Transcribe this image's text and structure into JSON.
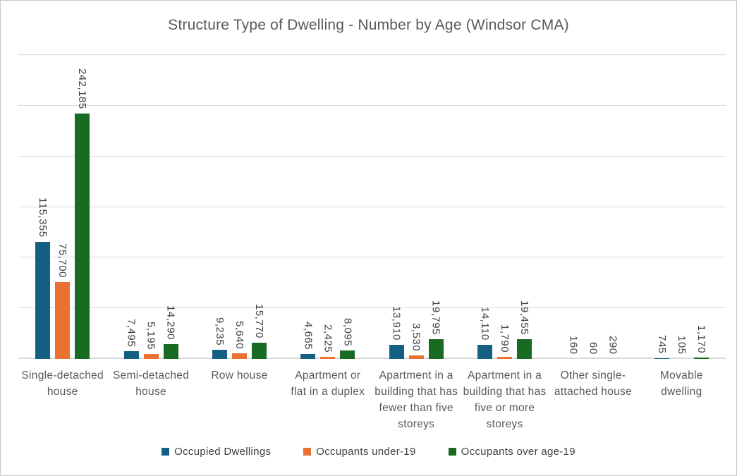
{
  "window": {
    "background": "#FFFFFF",
    "border_color": "#C9C9C9"
  },
  "chart_data": {
    "type": "bar",
    "title": "Structure Type of Dwelling - Number by Age (Windsor CMA)",
    "categories": [
      {
        "label": "Single-detached house",
        "lines": [
          "Single-detached",
          "house"
        ]
      },
      {
        "label": "Semi-detached house",
        "lines": [
          "Semi-detached",
          "house"
        ]
      },
      {
        "label": "Row house",
        "lines": [
          "Row house"
        ]
      },
      {
        "label": "Apartment or flat in a duplex",
        "lines": [
          "Apartment or",
          "flat in a duplex"
        ]
      },
      {
        "label": "Apartment in a building that has fewer than five storeys",
        "lines": [
          "Apartment in a",
          "building that has",
          "fewer than five",
          "storeys"
        ]
      },
      {
        "label": "Apartment in a building that has five or more storeys",
        "lines": [
          "Apartment in a",
          "building that has",
          "five or more",
          "storeys"
        ]
      },
      {
        "label": "Other single-attached house",
        "lines": [
          "Other single-",
          "attached house"
        ]
      },
      {
        "label": "Movable dwelling",
        "lines": [
          "Movable",
          "dwelling"
        ]
      }
    ],
    "series": [
      {
        "name": "Occupied Dwellings",
        "color": "#156082",
        "values": [
          115355,
          7495,
          9235,
          4665,
          13910,
          14110,
          160,
          745
        ]
      },
      {
        "name": "Occupants under-19",
        "color": "#E97132",
        "values": [
          75700,
          5195,
          5640,
          2425,
          3530,
          1790,
          60,
          105
        ]
      },
      {
        "name": "Occupants over age-19",
        "color": "#196B24",
        "values": [
          242185,
          14290,
          15770,
          8095,
          19795,
          19455,
          290,
          1170
        ]
      }
    ],
    "ylim": [
      0,
      300000
    ],
    "gridline_step": 50000,
    "grid": true,
    "y_axis_tick_labels": "none",
    "data_labels": "rotated-vertical",
    "legend_position": "bottom",
    "grid_color": "#D9D9D9",
    "text_colors": {
      "title": "#595959",
      "category_labels": "#595959",
      "data_labels": "#404040",
      "legend": "#404040"
    }
  }
}
